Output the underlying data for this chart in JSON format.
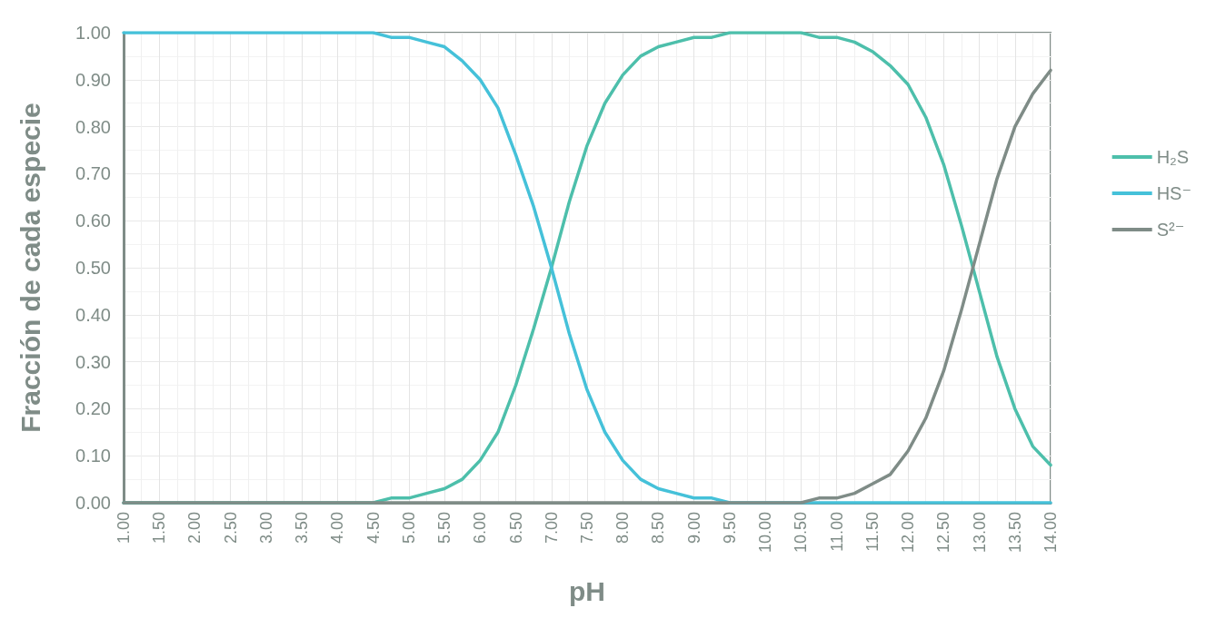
{
  "chart_data": {
    "type": "line",
    "xlabel": "pH",
    "ylabel": "Fracción de cada especie",
    "x": [
      1,
      1.25,
      1.5,
      1.75,
      2,
      2.25,
      2.5,
      2.75,
      3,
      3.25,
      3.5,
      3.75,
      4,
      4.25,
      4.5,
      4.75,
      5,
      5.25,
      5.5,
      5.75,
      6,
      6.25,
      6.5,
      6.75,
      7,
      7.25,
      7.5,
      7.75,
      8,
      8.25,
      8.5,
      8.75,
      9,
      9.25,
      9.5,
      9.75,
      10,
      10.25,
      10.5,
      10.75,
      11,
      11.25,
      11.5,
      11.75,
      12,
      12.25,
      12.5,
      12.75,
      13,
      13.25,
      13.5,
      13.75,
      14
    ],
    "series": [
      {
        "name": "H₂S",
        "color": "#4dbfab",
        "values": [
          0,
          0,
          0,
          0,
          0,
          0,
          0,
          0,
          0,
          0,
          0,
          0,
          0,
          0,
          0,
          0.01,
          0.01,
          0.02,
          0.03,
          0.05,
          0.09,
          0.15,
          0.25,
          0.37,
          0.5,
          0.64,
          0.76,
          0.85,
          0.91,
          0.95,
          0.97,
          0.98,
          0.99,
          0.99,
          1,
          1,
          1,
          1,
          1,
          0.99,
          0.99,
          0.98,
          0.96,
          0.93,
          0.89,
          0.82,
          0.72,
          0.59,
          0.45,
          0.31,
          0.2,
          0.12,
          0.08
        ]
      },
      {
        "name": "HS⁻",
        "color": "#45c1d9",
        "values": [
          1,
          1,
          1,
          1,
          1,
          1,
          1,
          1,
          1,
          1,
          1,
          1,
          1,
          1,
          1,
          0.99,
          0.99,
          0.98,
          0.97,
          0.94,
          0.9,
          0.84,
          0.74,
          0.63,
          0.5,
          0.36,
          0.24,
          0.15,
          0.09,
          0.05,
          0.03,
          0.02,
          0.01,
          0.01,
          0,
          0,
          0,
          0,
          0,
          0,
          0,
          0,
          0,
          0,
          0,
          0,
          0,
          0,
          0,
          0,
          0,
          0,
          0
        ]
      },
      {
        "name": "S²⁻",
        "color": "#7f8c87",
        "values": [
          0,
          0,
          0,
          0,
          0,
          0,
          0,
          0,
          0,
          0,
          0,
          0,
          0,
          0,
          0,
          0,
          0,
          0,
          0,
          0,
          0,
          0,
          0,
          0,
          0,
          0,
          0,
          0,
          0,
          0,
          0,
          0,
          0,
          0,
          0,
          0,
          0,
          0,
          0,
          0.01,
          0.01,
          0.02,
          0.04,
          0.06,
          0.11,
          0.18,
          0.28,
          0.41,
          0.55,
          0.69,
          0.8,
          0.87,
          0.92
        ]
      }
    ],
    "xlim": [
      1,
      14
    ],
    "xticks": [
      {
        "value": 1,
        "label": "1.00"
      },
      {
        "value": 1.5,
        "label": "1.50"
      },
      {
        "value": 2,
        "label": "2.00"
      },
      {
        "value": 2.5,
        "label": "2.50"
      },
      {
        "value": 3,
        "label": "3.00"
      },
      {
        "value": 3.5,
        "label": "3.50"
      },
      {
        "value": 4,
        "label": "4.00"
      },
      {
        "value": 4.5,
        "label": "4.50"
      },
      {
        "value": 5,
        "label": "5.00"
      },
      {
        "value": 5.5,
        "label": "5.50"
      },
      {
        "value": 6,
        "label": "6.00"
      },
      {
        "value": 6.5,
        "label": "6.50"
      },
      {
        "value": 7,
        "label": "7.00"
      },
      {
        "value": 7.5,
        "label": "7.50"
      },
      {
        "value": 8,
        "label": "8.00"
      },
      {
        "value": 8.5,
        "label": "8.50"
      },
      {
        "value": 9,
        "label": "9.00"
      },
      {
        "value": 9.5,
        "label": "9.50"
      },
      {
        "value": 10,
        "label": "10.00"
      },
      {
        "value": 10.5,
        "label": "10.50"
      },
      {
        "value": 11,
        "label": "11.00"
      },
      {
        "value": 11.5,
        "label": "11.50"
      },
      {
        "value": 12,
        "label": "12.00"
      },
      {
        "value": 12.5,
        "label": "12.50"
      },
      {
        "value": 13,
        "label": "13.00"
      },
      {
        "value": 13.5,
        "label": "13.50"
      },
      {
        "value": 14,
        "label": "14.00"
      }
    ],
    "ylim": [
      0,
      1
    ],
    "yticks": [
      {
        "value": 0,
        "label": "0.00"
      },
      {
        "value": 0.1,
        "label": "0.10"
      },
      {
        "value": 0.2,
        "label": "0.20"
      },
      {
        "value": 0.3,
        "label": "0.30"
      },
      {
        "value": 0.4,
        "label": "0.40"
      },
      {
        "value": 0.5,
        "label": "0.50"
      },
      {
        "value": 0.6,
        "label": "0.60"
      },
      {
        "value": 0.7,
        "label": "0.70"
      },
      {
        "value": 0.8,
        "label": "0.80"
      },
      {
        "value": 0.9,
        "label": "0.90"
      },
      {
        "value": 1,
        "label": "1.00"
      }
    ],
    "grid": true,
    "legend": "right",
    "marker": "none",
    "line_style": "solid"
  }
}
